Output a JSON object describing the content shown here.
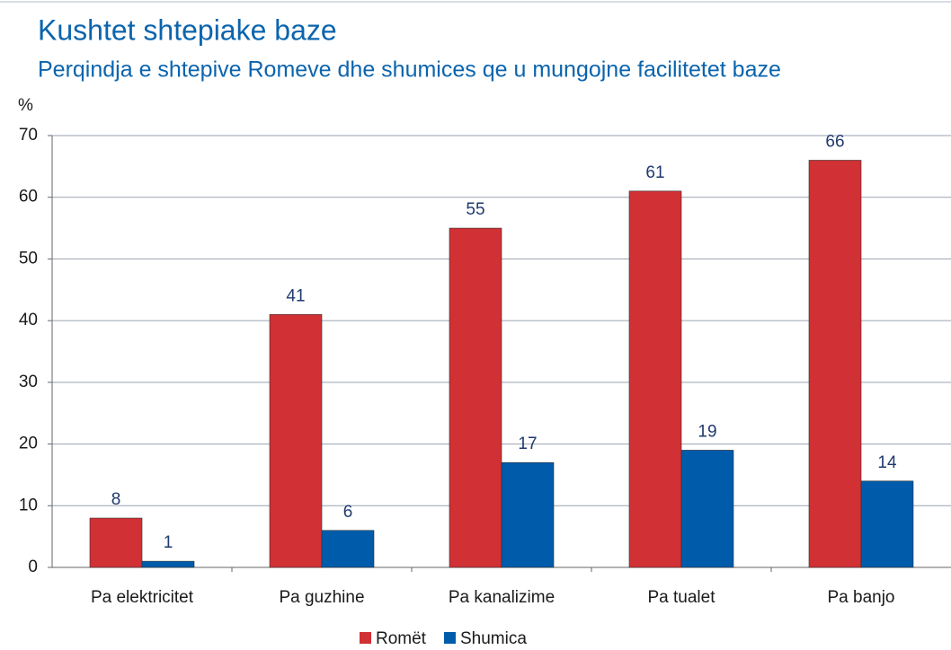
{
  "chart_data": {
    "type": "bar",
    "title": "Kushtet shtepiake baze",
    "subtitle": "Perqindja e shtepive Romeve dhe shumices qe u mungojne facilitetet baze",
    "y_label": "%",
    "categories": [
      "Pa elektricitet",
      "Pa guzhine",
      "Pa kanalizime",
      "Pa tualet",
      "Pa banjo"
    ],
    "series": [
      {
        "name": "Romët",
        "color": "#d13034",
        "values": [
          8,
          41,
          55,
          61,
          66
        ]
      },
      {
        "name": "Shumica",
        "color": "#005baa",
        "values": [
          1,
          6,
          17,
          19,
          14
        ]
      }
    ],
    "ylim": [
      0,
      70
    ],
    "yticks": [
      0,
      10,
      20,
      30,
      40,
      50,
      60,
      70
    ],
    "grid": true,
    "legend": "bottom"
  }
}
